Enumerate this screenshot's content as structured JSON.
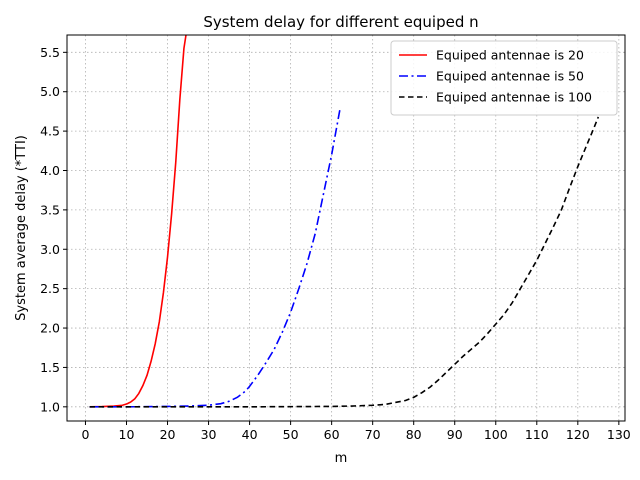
{
  "chart_data": {
    "type": "line",
    "title": "System delay for different equiped n",
    "xlabel": "m",
    "ylabel": "System average delay (*TTI)",
    "xlim": [
      -4.5,
      131.5
    ],
    "ylim": [
      0.82,
      5.72
    ],
    "xticks": [
      0,
      10,
      20,
      30,
      40,
      50,
      60,
      70,
      80,
      90,
      100,
      110,
      120,
      130
    ],
    "yticks": [
      1.0,
      1.5,
      2.0,
      2.5,
      3.0,
      3.5,
      4.0,
      4.5,
      5.0,
      5.5
    ],
    "grid": true,
    "legend_position": "top-right",
    "series": [
      {
        "name": "Equiped antennae is 20",
        "color": "#ff0000",
        "linestyle": "solid",
        "x": [
          1,
          4,
          7,
          9,
          10,
          11,
          12,
          13,
          14,
          15,
          16,
          17,
          18,
          19,
          20,
          21,
          22,
          23,
          24,
          24.5
        ],
        "y": [
          1.0,
          1.003,
          1.01,
          1.02,
          1.035,
          1.06,
          1.1,
          1.17,
          1.27,
          1.4,
          1.58,
          1.8,
          2.08,
          2.45,
          2.9,
          3.45,
          4.1,
          4.9,
          5.55,
          5.72
        ]
      },
      {
        "name": "Equiped antennae is 50",
        "color": "#0000ff",
        "linestyle": "dashdot",
        "x": [
          1,
          10,
          20,
          25,
          30,
          33,
          35,
          37,
          39,
          40,
          42,
          44,
          46,
          48,
          50,
          52,
          54,
          56,
          58,
          60,
          62
        ],
        "y": [
          1.0,
          1.0,
          1.005,
          1.01,
          1.02,
          1.04,
          1.07,
          1.12,
          1.2,
          1.26,
          1.4,
          1.56,
          1.73,
          1.95,
          2.2,
          2.5,
          2.82,
          3.2,
          3.7,
          4.2,
          4.77
        ]
      },
      {
        "name": "Equiped antennae is 100",
        "color": "#000000",
        "linestyle": "dashed",
        "x": [
          1,
          20,
          40,
          60,
          65,
          70,
          73,
          75,
          78,
          80,
          82,
          84,
          86,
          88,
          90,
          92,
          94,
          96,
          98,
          100,
          102,
          104,
          106,
          108,
          110,
          112,
          114,
          116,
          118,
          120,
          122,
          124,
          125
        ],
        "y": [
          1.0,
          1.0,
          1.0,
          1.005,
          1.01,
          1.02,
          1.03,
          1.05,
          1.08,
          1.12,
          1.18,
          1.25,
          1.34,
          1.44,
          1.54,
          1.64,
          1.73,
          1.82,
          1.93,
          2.05,
          2.17,
          2.32,
          2.5,
          2.68,
          2.86,
          3.07,
          3.28,
          3.5,
          3.78,
          4.05,
          4.3,
          4.55,
          4.68
        ]
      }
    ]
  }
}
